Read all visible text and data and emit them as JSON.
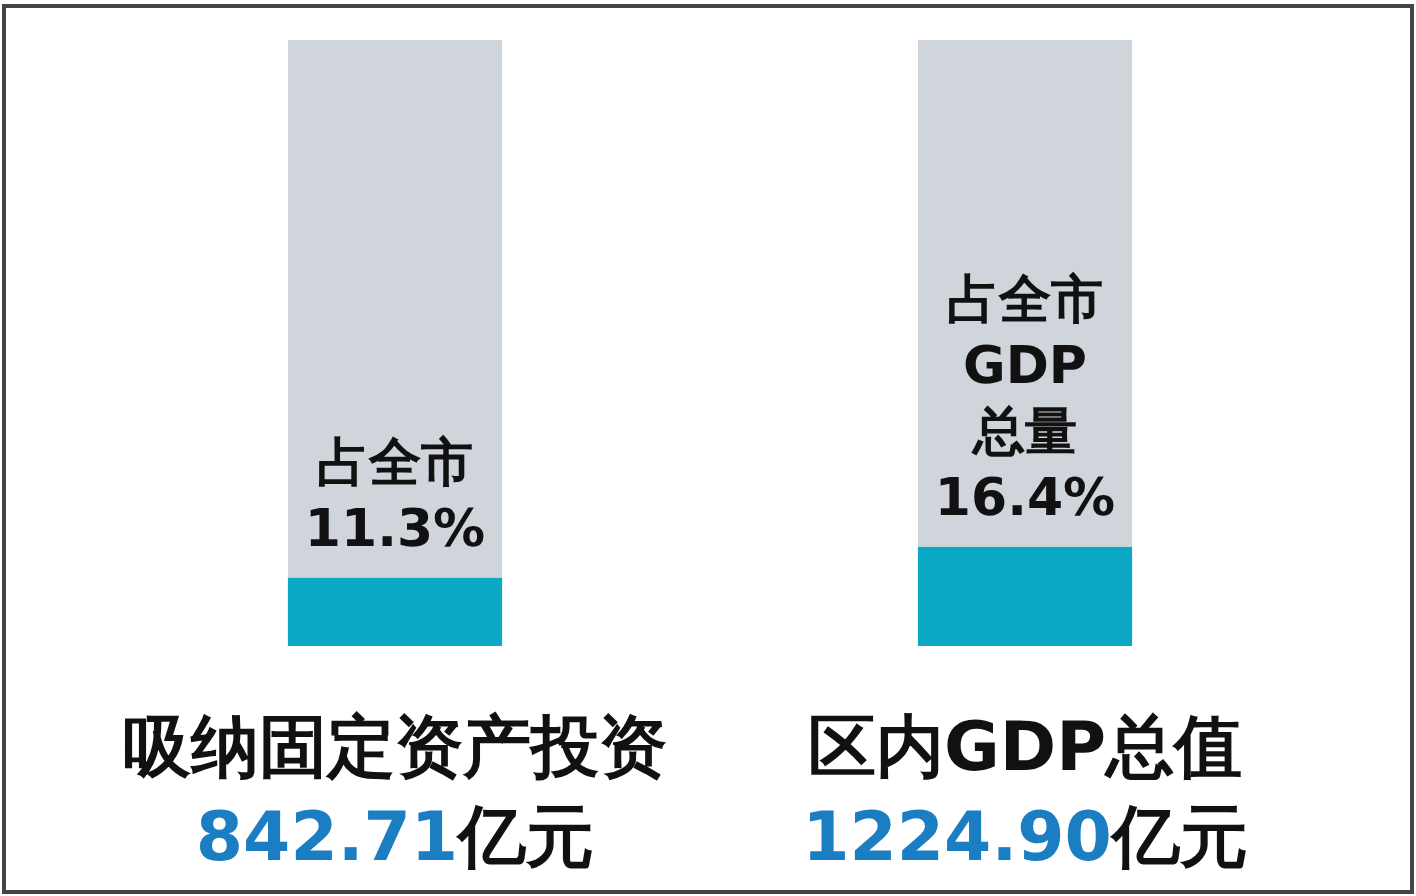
{
  "chart_data": {
    "type": "bar",
    "stacked": true,
    "categories": [
      "吸纳固定资产投资",
      "区内GDP总值"
    ],
    "series": [
      {
        "color": "#0aa8c3",
        "values": [
          11.3,
          16.4
        ],
        "value_labels": [
          "占全市 11.3%",
          "占全市 GDP 总量 16.4%"
        ]
      },
      {
        "color": "#d0d5db",
        "values": [
          88.7,
          83.6
        ]
      }
    ],
    "tick_labels": "x",
    "annotations": [
      "842.71亿元",
      "1224.90亿元"
    ]
  }
}
